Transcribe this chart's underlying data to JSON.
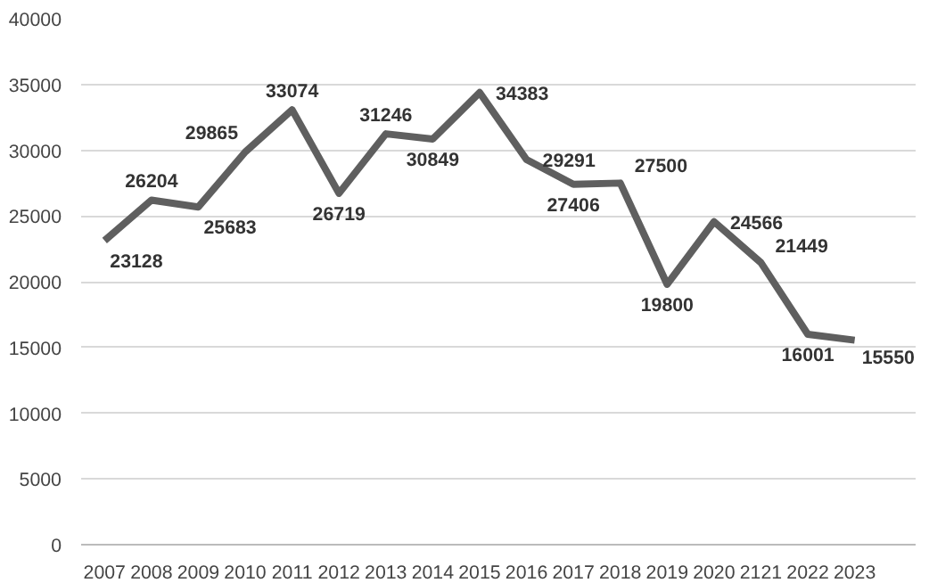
{
  "chart_data": {
    "type": "line",
    "categories": [
      "2007",
      "2008",
      "2009",
      "2010",
      "2011",
      "2012",
      "2013",
      "2014",
      "2015",
      "2016",
      "2017",
      "2018",
      "2019",
      "2020",
      "2121",
      "2022",
      "2023"
    ],
    "series": [
      {
        "color": "#5f5f5f",
        "values": [
          23128,
          26204,
          25683,
          29865,
          33074,
          26719,
          31246,
          30849,
          34383,
          29291,
          27406,
          27500,
          19800,
          24566,
          21449,
          16001,
          15550
        ]
      }
    ],
    "ylim": [
      0,
      40000
    ],
    "yticks": [
      0,
      5000,
      10000,
      15000,
      20000,
      25000,
      30000,
      35000,
      40000
    ],
    "grid": "y",
    "data_labels": true,
    "marker": "none",
    "line_style": "solid"
  }
}
